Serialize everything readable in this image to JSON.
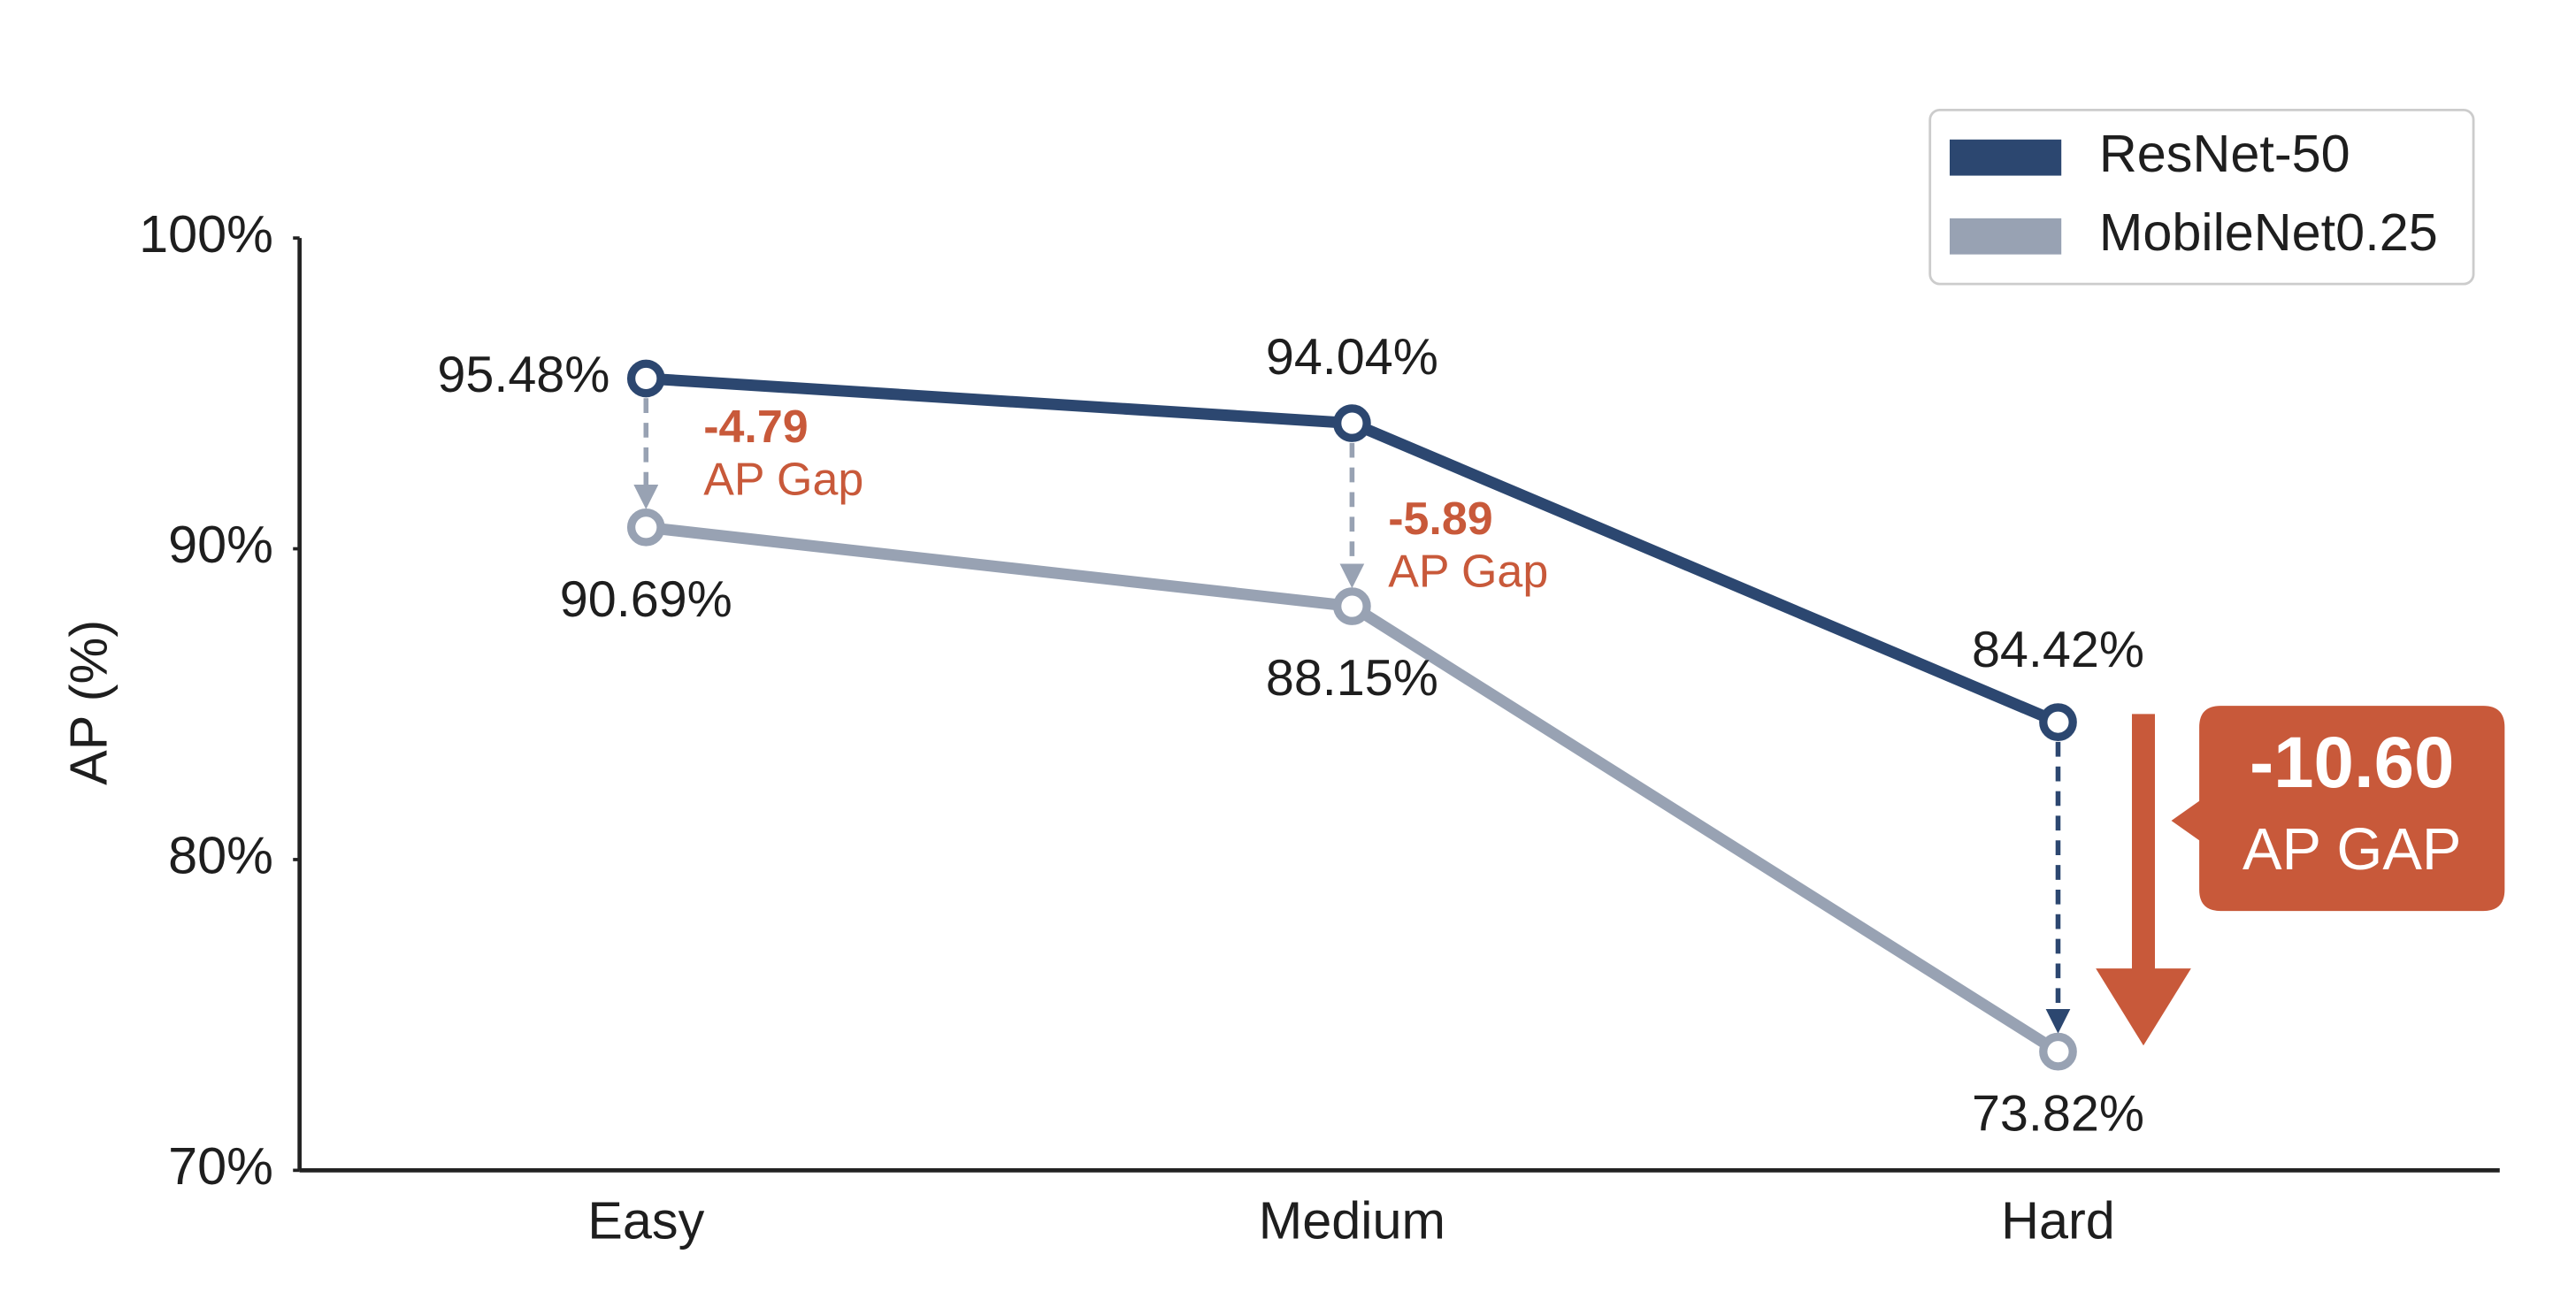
{
  "chart_data": {
    "type": "line",
    "y_label": "AP (%)",
    "categories": [
      "Easy",
      "Medium",
      "Hard"
    ],
    "series": [
      {
        "name": "ResNet-50",
        "color": "#2c4770",
        "values": [
          95.48,
          94.04,
          84.42
        ],
        "value_labels": [
          "95.48%",
          "94.04%",
          "84.42%"
        ]
      },
      {
        "name": "MobileNet0.25",
        "color": "#98a2b3",
        "values": [
          90.69,
          88.15,
          73.82
        ],
        "value_labels": [
          "90.69%",
          "88.15%",
          "73.82%"
        ]
      }
    ],
    "ylim": [
      70,
      100
    ],
    "yticks": [
      {
        "value": 70,
        "label": "70%"
      },
      {
        "value": 80,
        "label": "80%"
      },
      {
        "value": 90,
        "label": "90%"
      },
      {
        "value": 100,
        "label": "100%"
      }
    ],
    "grid": false,
    "legend": "top-right",
    "annotations": [
      {
        "label": "-4.79",
        "sublabel": "AP Gap"
      },
      {
        "label": "-5.89",
        "sublabel": "AP Gap"
      },
      {
        "label": "-10.60",
        "sublabel": "AP GAP"
      }
    ],
    "annotation_color": "#c8593a"
  }
}
